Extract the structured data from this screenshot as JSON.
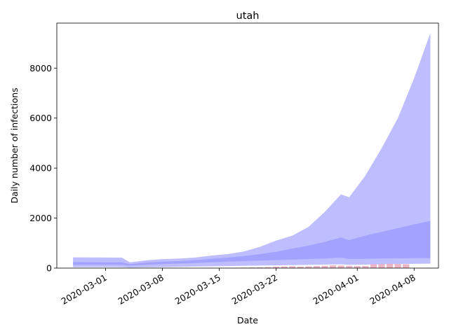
{
  "chart_data": {
    "type": "area",
    "title": "utah",
    "xlabel": "Date",
    "ylabel": "Daily number of infections",
    "x_axis_type": "date",
    "xlim": [
      "2020-02-24",
      "2020-04-11"
    ],
    "ylim": [
      0,
      9800
    ],
    "x_ticks": [
      "2020-03-01",
      "2020-03-08",
      "2020-03-15",
      "2020-03-22",
      "2020-04-01",
      "2020-04-08"
    ],
    "y_ticks": [
      0,
      2000,
      4000,
      6000,
      8000
    ],
    "grid": false,
    "legend": "none",
    "colors": {
      "outer_band": "#b3b3ff",
      "inner_band": "#9999ff",
      "observed_bars": "#e6a3b8",
      "axis": "#000000"
    },
    "series": [
      {
        "role": "outer_band",
        "x": [
          "2020-02-26",
          "2020-03-03",
          "2020-03-04",
          "2020-03-06",
          "2020-03-08",
          "2020-03-10",
          "2020-03-12",
          "2020-03-14",
          "2020-03-16",
          "2020-03-18",
          "2020-03-20",
          "2020-03-22",
          "2020-03-24",
          "2020-03-26",
          "2020-03-28",
          "2020-03-30",
          "2020-03-31",
          "2020-04-02",
          "2020-04-04",
          "2020-04-06",
          "2020-04-08",
          "2020-04-10"
        ],
        "low": [
          40,
          40,
          20,
          30,
          40,
          50,
          60,
          70,
          80,
          90,
          100,
          110,
          120,
          130,
          140,
          150,
          130,
          140,
          150,
          160,
          170,
          180
        ],
        "high": [
          430,
          420,
          230,
          310,
          360,
          380,
          420,
          500,
          560,
          660,
          850,
          1100,
          1300,
          1650,
          2250,
          2950,
          2830,
          3700,
          4800,
          6000,
          7600,
          9400
        ]
      },
      {
        "role": "inner_band",
        "x": [
          "2020-02-26",
          "2020-03-03",
          "2020-03-04",
          "2020-03-06",
          "2020-03-08",
          "2020-03-10",
          "2020-03-12",
          "2020-03-14",
          "2020-03-16",
          "2020-03-18",
          "2020-03-20",
          "2020-03-22",
          "2020-03-24",
          "2020-03-26",
          "2020-03-28",
          "2020-03-30",
          "2020-03-31",
          "2020-04-02",
          "2020-04-04",
          "2020-04-06",
          "2020-04-08",
          "2020-04-10"
        ],
        "low": [
          130,
          130,
          100,
          130,
          160,
          180,
          200,
          230,
          260,
          280,
          300,
          320,
          340,
          360,
          380,
          420,
          360,
          370,
          380,
          390,
          400,
          400
        ],
        "high": [
          240,
          230,
          160,
          220,
          260,
          280,
          320,
          370,
          420,
          480,
          560,
          650,
          780,
          900,
          1050,
          1220,
          1120,
          1300,
          1450,
          1600,
          1750,
          1890
        ]
      }
    ],
    "observed": {
      "x": [
        "2020-03-06",
        "2020-03-07",
        "2020-03-08",
        "2020-03-09",
        "2020-03-10",
        "2020-03-11",
        "2020-03-12",
        "2020-03-13",
        "2020-03-14",
        "2020-03-15",
        "2020-03-16",
        "2020-03-17",
        "2020-03-18",
        "2020-03-19",
        "2020-03-20",
        "2020-03-21",
        "2020-03-22",
        "2020-03-23",
        "2020-03-24",
        "2020-03-25",
        "2020-03-26",
        "2020-03-27",
        "2020-03-28",
        "2020-03-29",
        "2020-03-30",
        "2020-03-31",
        "2020-04-01",
        "2020-04-02",
        "2020-04-03",
        "2020-04-04",
        "2020-04-05",
        "2020-04-06",
        "2020-04-07"
      ],
      "values": [
        1,
        1,
        2,
        2,
        3,
        3,
        5,
        6,
        8,
        10,
        12,
        15,
        20,
        25,
        30,
        40,
        55,
        65,
        75,
        60,
        70,
        80,
        90,
        110,
        100,
        90,
        80,
        85,
        150,
        160,
        170,
        165,
        155
      ]
    }
  }
}
